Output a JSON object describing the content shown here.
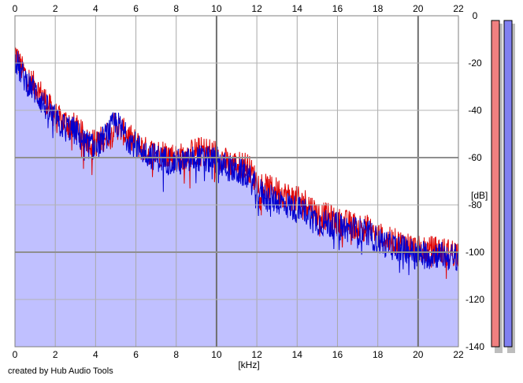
{
  "chart_data": {
    "type": "area",
    "xlabel": "[kHz]",
    "ylabel": "[dB]",
    "xlim": [
      0,
      22
    ],
    "ylim": [
      -140,
      0
    ],
    "x_ticks": [
      "0",
      "2",
      "4",
      "6",
      "8",
      "10",
      "12",
      "14",
      "16",
      "18",
      "20",
      "22"
    ],
    "y_ticks": [
      "0",
      "-20",
      "-40",
      "-60",
      "-80",
      "-100",
      "-120",
      "-140"
    ],
    "grid": true,
    "series": [
      {
        "channel": "left",
        "color": "#e00000",
        "points": [
          [
            0,
            -15
          ],
          [
            0.3,
            -22
          ],
          [
            0.6,
            -26
          ],
          [
            1.0,
            -30
          ],
          [
            1.4,
            -34
          ],
          [
            1.8,
            -40
          ],
          [
            2.2,
            -44
          ],
          [
            2.6,
            -45
          ],
          [
            3.0,
            -47
          ],
          [
            3.5,
            -52
          ],
          [
            4.0,
            -54
          ],
          [
            4.5,
            -51
          ],
          [
            5.0,
            -46
          ],
          [
            5.5,
            -50
          ],
          [
            6.0,
            -54
          ],
          [
            6.5,
            -57
          ],
          [
            7.0,
            -58
          ],
          [
            7.5,
            -58
          ],
          [
            8.0,
            -60
          ],
          [
            8.5,
            -59
          ],
          [
            9.0,
            -57
          ],
          [
            9.5,
            -57
          ],
          [
            10.0,
            -58
          ],
          [
            10.5,
            -62
          ],
          [
            11.0,
            -63
          ],
          [
            11.5,
            -63
          ],
          [
            12.0,
            -70
          ],
          [
            12.5,
            -73
          ],
          [
            13.0,
            -74
          ],
          [
            13.5,
            -76
          ],
          [
            14.0,
            -78
          ],
          [
            14.5,
            -79
          ],
          [
            15.0,
            -84
          ],
          [
            15.5,
            -85
          ],
          [
            16.0,
            -87
          ],
          [
            16.5,
            -88
          ],
          [
            17.0,
            -89
          ],
          [
            17.5,
            -90
          ],
          [
            18.0,
            -93
          ],
          [
            18.5,
            -95
          ],
          [
            19.0,
            -96
          ],
          [
            19.5,
            -97
          ],
          [
            20.0,
            -99
          ],
          [
            20.5,
            -99
          ],
          [
            21.0,
            -99
          ],
          [
            21.5,
            -100
          ],
          [
            22.0,
            -100
          ]
        ]
      },
      {
        "channel": "right",
        "color": "#0000d0",
        "points": [
          [
            0,
            -18
          ],
          [
            0.3,
            -24
          ],
          [
            0.6,
            -28
          ],
          [
            1.0,
            -32
          ],
          [
            1.4,
            -37
          ],
          [
            1.8,
            -42
          ],
          [
            2.2,
            -46
          ],
          [
            2.6,
            -47
          ],
          [
            3.0,
            -49
          ],
          [
            3.5,
            -54
          ],
          [
            4.0,
            -56
          ],
          [
            4.5,
            -51
          ],
          [
            5.0,
            -45
          ],
          [
            5.5,
            -51
          ],
          [
            6.0,
            -55
          ],
          [
            6.5,
            -58
          ],
          [
            7.0,
            -60
          ],
          [
            7.5,
            -61
          ],
          [
            8.0,
            -62
          ],
          [
            8.5,
            -62
          ],
          [
            9.0,
            -60
          ],
          [
            9.5,
            -61
          ],
          [
            10.0,
            -61
          ],
          [
            10.5,
            -64
          ],
          [
            11.0,
            -66
          ],
          [
            11.5,
            -67
          ],
          [
            12.0,
            -73
          ],
          [
            12.5,
            -77
          ],
          [
            13.0,
            -78
          ],
          [
            13.5,
            -80
          ],
          [
            14.0,
            -82
          ],
          [
            14.5,
            -83
          ],
          [
            15.0,
            -87
          ],
          [
            15.5,
            -88
          ],
          [
            16.0,
            -89
          ],
          [
            16.5,
            -90
          ],
          [
            17.0,
            -91
          ],
          [
            17.5,
            -92
          ],
          [
            18.0,
            -95
          ],
          [
            18.5,
            -97
          ],
          [
            19.0,
            -98
          ],
          [
            19.5,
            -99
          ],
          [
            20.0,
            -101
          ],
          [
            20.5,
            -101
          ],
          [
            21.0,
            -101
          ],
          [
            21.5,
            -102
          ],
          [
            22.0,
            -102
          ]
        ]
      }
    ],
    "fill_color": "#c0c0ff",
    "level_meters": [
      {
        "channel": "left",
        "color": "#f08080"
      },
      {
        "channel": "right",
        "color": "#8080f0"
      }
    ]
  },
  "credit": "created by Hub Audio Tools"
}
